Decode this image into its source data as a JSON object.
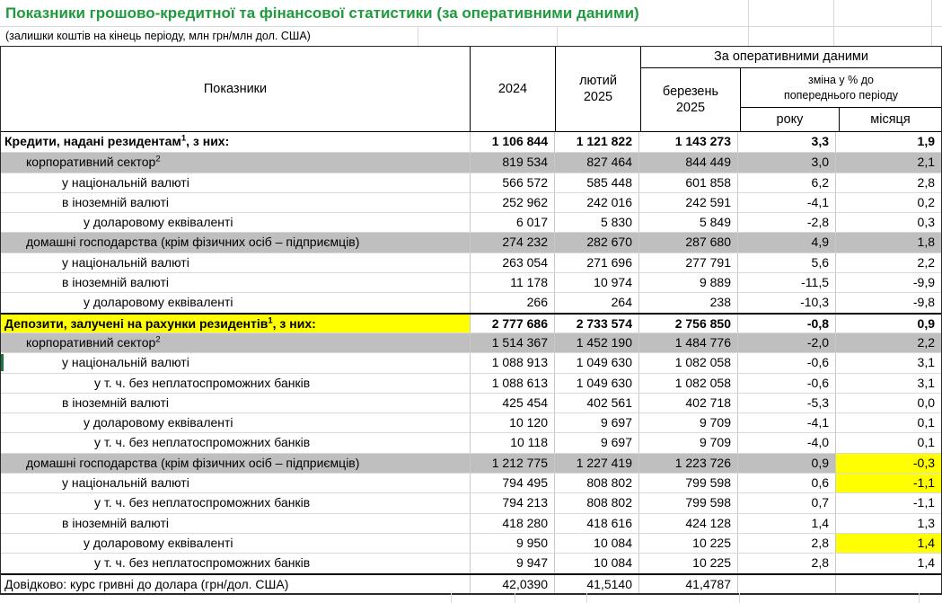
{
  "title": "Показники грошово-кредитної та фінансової статистики (за оперативними даними)",
  "subtitle": "(залишки коштів на кінець періоду, млн грн/млн дол. США)",
  "colors": {
    "title_green": "#1f9a3d",
    "band_gray": "#bfbfbf",
    "highlight_yellow": "#ffff00",
    "selection_green": "#1f7246"
  },
  "header": {
    "indicators": "Показники",
    "year_2024": "2024",
    "feb_line1": "лютий",
    "feb_line2": "2025",
    "operational_group": "За оперативними даними",
    "mar_line1": "березень",
    "mar_line2": "2025",
    "change_line1": "зміна у % до",
    "change_line2": "попереднього періоду",
    "change_year": "року",
    "change_month": "місяця"
  },
  "chart_data": {
    "type": "table",
    "title": "Показники грошово-кредитної та фінансової статистики (за оперативними даними)",
    "subtitle": "(залишки коштів на кінець періоду, млн грн/млн дол. США)",
    "columns": [
      "Показники",
      "2024",
      "лютий 2025",
      "березень 2025 (за оперативними даними)",
      "зміна у % до попереднього періоду: року",
      "зміна у % до попереднього періоду: місяця"
    ],
    "rows": [
      {
        "label": "Кредити, надані резидентам",
        "sup": "1",
        "suffix": ", з них:",
        "bold": true,
        "indent": 0,
        "values": [
          "1 106 844",
          "1 121 822",
          "1 143 273",
          "3,3",
          "1,9"
        ]
      },
      {
        "label": "корпоративний сектор",
        "sup": "2",
        "indent": 1,
        "bg": "gray",
        "values": [
          "819 534",
          "827 464",
          "844 449",
          "3,0",
          "2,1"
        ]
      },
      {
        "label": "у національній валюті",
        "indent": 2,
        "values": [
          "566 572",
          "585 448",
          "601 858",
          "6,2",
          "2,8"
        ]
      },
      {
        "label": "в іноземній валюті",
        "indent": 2,
        "values": [
          "252 962",
          "242 016",
          "242 591",
          "-4,1",
          "0,2"
        ]
      },
      {
        "label": "у доларовому еквіваленті",
        "indent": 3,
        "values": [
          "6 017",
          "5 830",
          "5 849",
          "-2,8",
          "0,3"
        ]
      },
      {
        "label": "домашні господарства (крім фізичних осіб – підприємців)",
        "indent": 1,
        "bg": "gray",
        "values": [
          "274 232",
          "282 670",
          "287 680",
          "4,9",
          "1,8"
        ]
      },
      {
        "label": "у національній валюті",
        "indent": 2,
        "values": [
          "263 054",
          "271 696",
          "277 791",
          "5,6",
          "2,2"
        ]
      },
      {
        "label": "в іноземній валюті",
        "indent": 2,
        "values": [
          "11 178",
          "10 974",
          "9 889",
          "-11,5",
          "-9,9"
        ]
      },
      {
        "label": "у доларовому еквіваленті",
        "indent": 3,
        "values": [
          "266",
          "264",
          "238",
          "-10,3",
          "-9,8"
        ]
      },
      {
        "label": "Депозити, залучені на рахунки резидентів",
        "sup": "1",
        "suffix": ", з них:",
        "bold": true,
        "indent": 0,
        "label_bg": "yellow",
        "top_border": true,
        "values": [
          "2 777 686",
          "2 733 574",
          "2 756 850",
          "-0,8",
          "0,9"
        ]
      },
      {
        "label": "корпоративний сектор",
        "sup": "2",
        "indent": 1,
        "bg": "gray",
        "values": [
          "1 514 367",
          "1 452 190",
          "1 484 776",
          "-2,0",
          "2,2"
        ]
      },
      {
        "label": "у національній валюті",
        "indent": 2,
        "marker": true,
        "values": [
          "1 088 913",
          "1 049 630",
          "1 082 058",
          "-0,6",
          "3,1"
        ]
      },
      {
        "label": "у т. ч. без неплатоспроможних банків",
        "indent": 4,
        "values": [
          "1 088 613",
          "1 049 630",
          "1 082 058",
          "-0,6",
          "3,1"
        ]
      },
      {
        "label": "в іноземній валюті",
        "indent": 2,
        "values": [
          "425 454",
          "402 561",
          "402 718",
          "-5,3",
          "0,0"
        ]
      },
      {
        "label": "у доларовому еквіваленті",
        "indent": 3,
        "values": [
          "10 120",
          "9 697",
          "9 709",
          "-4,1",
          "0,1"
        ]
      },
      {
        "label": "у т. ч. без неплатоспроможних банків",
        "indent": 4,
        "values": [
          "10 118",
          "9 697",
          "9 709",
          "-4,0",
          "0,1"
        ]
      },
      {
        "label": "домашні господарства (крім фізичних осіб – підприємців)",
        "indent": 1,
        "bg": "gray",
        "yellow_last": true,
        "values": [
          "1 212 775",
          "1 227 419",
          "1 223 726",
          "0,9",
          "-0,3"
        ]
      },
      {
        "label": "у національній валюті",
        "indent": 2,
        "yellow_last": true,
        "values": [
          "794 495",
          "808 802",
          "799 598",
          "0,6",
          "-1,1"
        ]
      },
      {
        "label": "у т. ч. без неплатоспроможних банків",
        "indent": 4,
        "values": [
          "794 213",
          "808 802",
          "799 598",
          "0,7",
          "-1,1"
        ]
      },
      {
        "label": "в іноземній валюті",
        "indent": 2,
        "values": [
          "418 280",
          "418 616",
          "424 128",
          "1,4",
          "1,3"
        ]
      },
      {
        "label": "у доларовому еквіваленті",
        "indent": 3,
        "yellow_last": true,
        "values": [
          "9 950",
          "10 084",
          "10 225",
          "2,8",
          "1,4"
        ]
      },
      {
        "label": "у т. ч. без неплатоспроможних банків",
        "indent": 4,
        "values": [
          "9 947",
          "10 084",
          "10 225",
          "2,8",
          "1,4"
        ]
      },
      {
        "label": "Довідково: курс гривні до долара (грн/дол. США)",
        "indent": 0,
        "top_border": true,
        "values": [
          "42,0390",
          "41,5140",
          "41,4787",
          "",
          ""
        ]
      }
    ]
  }
}
